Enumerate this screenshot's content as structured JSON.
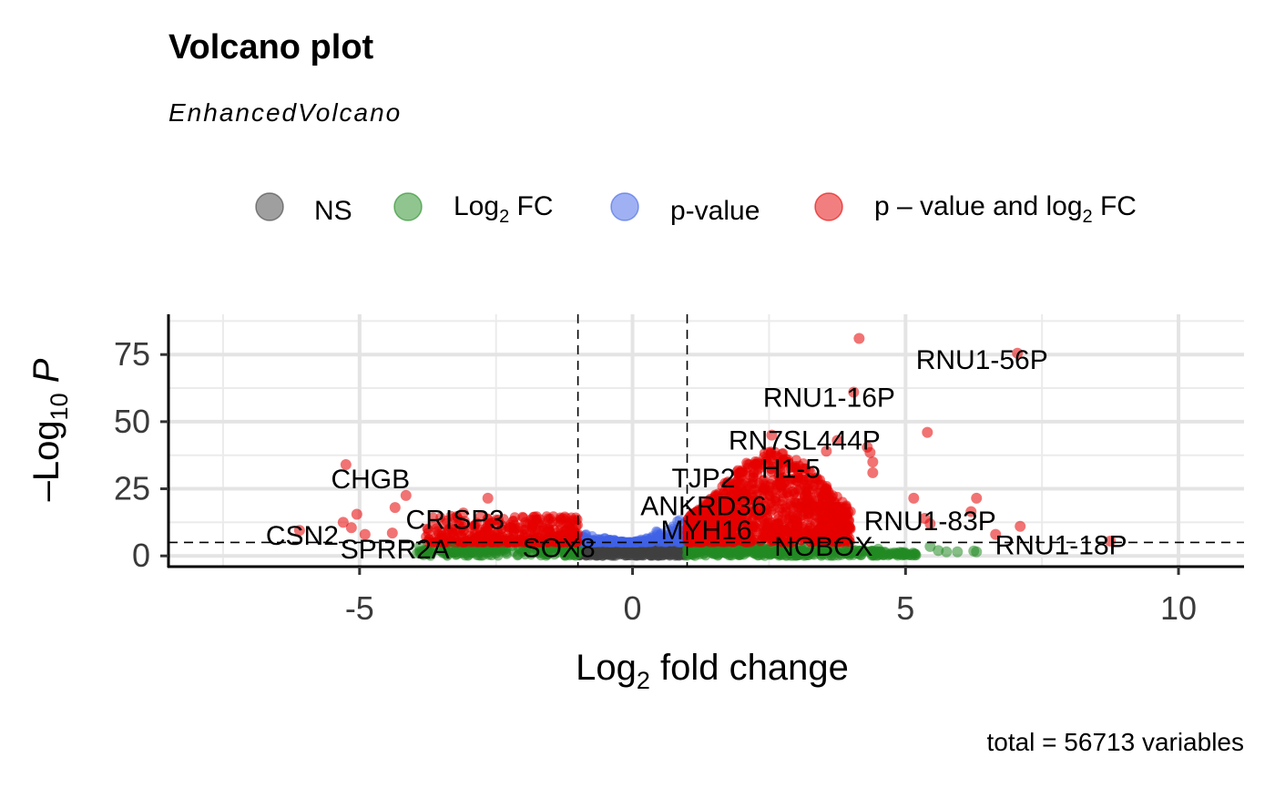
{
  "chart_data": {
    "type": "scatter",
    "title": "Volcano plot",
    "subtitle": "EnhancedVolcano",
    "caption": "total = 56713 variables",
    "xlabel": "fold change",
    "xlabel_prefix": "Log",
    "xlabel_sub": "2",
    "ylabel_prefix": "–Log",
    "ylabel_sub": "10",
    "ylabel_var": "P",
    "xlim": [
      -8.5,
      11.2
    ],
    "ylim": [
      -4,
      90
    ],
    "x_ticks": [
      -5,
      0,
      5,
      10
    ],
    "x_tick_labels": [
      "-5",
      "0",
      "5",
      "10"
    ],
    "y_ticks": [
      0,
      25,
      50,
      75
    ],
    "y_tick_labels": [
      "0",
      "25",
      "50",
      "75"
    ],
    "x_minor": [
      -7.5,
      -2.5,
      2.5,
      7.5
    ],
    "y_minor": [
      12.5,
      37.5,
      62.5,
      87.5
    ],
    "grid": true,
    "fc_cutoffs": [
      -1,
      1
    ],
    "p_cutoff_neglog10": 5,
    "legend": {
      "position": "top",
      "items": [
        {
          "key": "ns",
          "label": "NS",
          "color": "#404040"
        },
        {
          "key": "fc",
          "label_prefix": "Log",
          "label_sub": "2",
          "label_suffix": " FC",
          "color": "#228b22"
        },
        {
          "key": "p",
          "label": "p-value",
          "color": "#4063e6"
        },
        {
          "key": "both",
          "label_prefix": "p – value and log",
          "label_sub": "2",
          "label_suffix": " FC",
          "color": "#e60000"
        }
      ]
    },
    "colors": {
      "ns": "#404040",
      "fc": "#228b22",
      "p": "#4063e6",
      "both": "#e60000"
    },
    "highlight_points": [
      {
        "x": 4.15,
        "y": 81,
        "class": "both"
      },
      {
        "x": 7.05,
        "y": 75.5,
        "class": "both"
      },
      {
        "x": 4.05,
        "y": 61,
        "class": "both"
      },
      {
        "x": 5.4,
        "y": 46,
        "class": "both"
      },
      {
        "x": 4.3,
        "y": 40.5,
        "class": "both"
      },
      {
        "x": 4.35,
        "y": 38.5,
        "class": "both"
      },
      {
        "x": 4.4,
        "y": 35,
        "class": "both"
      },
      {
        "x": 4.4,
        "y": 31,
        "class": "both"
      },
      {
        "x": 3.55,
        "y": 39,
        "class": "both"
      },
      {
        "x": 3.75,
        "y": 43,
        "class": "both"
      },
      {
        "x": 2.55,
        "y": 45,
        "class": "both"
      },
      {
        "x": 6.3,
        "y": 21.5,
        "class": "both"
      },
      {
        "x": 6.2,
        "y": 16.5,
        "class": "both"
      },
      {
        "x": 5.15,
        "y": 21.5,
        "class": "both"
      },
      {
        "x": 5.35,
        "y": 14,
        "class": "both"
      },
      {
        "x": 7.1,
        "y": 11,
        "class": "both"
      },
      {
        "x": 6.65,
        "y": 8,
        "class": "both"
      },
      {
        "x": 8.75,
        "y": 5.5,
        "class": "both"
      },
      {
        "x": 5.45,
        "y": 12,
        "class": "both"
      },
      {
        "x": -5.25,
        "y": 34,
        "class": "both"
      },
      {
        "x": -4.15,
        "y": 22.5,
        "class": "both"
      },
      {
        "x": -5.05,
        "y": 15.5,
        "class": "both"
      },
      {
        "x": -4.35,
        "y": 18,
        "class": "both"
      },
      {
        "x": -5.3,
        "y": 12.5,
        "class": "both"
      },
      {
        "x": -5.15,
        "y": 10.5,
        "class": "both"
      },
      {
        "x": -6.1,
        "y": 9.5,
        "class": "both"
      },
      {
        "x": -4.9,
        "y": 8,
        "class": "both"
      },
      {
        "x": -4.4,
        "y": 8.5,
        "class": "both"
      },
      {
        "x": -2.65,
        "y": 21.5,
        "class": "both"
      },
      {
        "x": -3.1,
        "y": 16,
        "class": "both"
      },
      {
        "x": -3.4,
        "y": 13,
        "class": "both"
      },
      {
        "x": 5.45,
        "y": 3.5,
        "class": "fc"
      },
      {
        "x": 5.6,
        "y": 2,
        "class": "fc"
      },
      {
        "x": 5.75,
        "y": 1.5,
        "class": "fc"
      },
      {
        "x": 5.95,
        "y": 1.5,
        "class": "fc"
      },
      {
        "x": 6.3,
        "y": 1.5,
        "class": "fc"
      },
      {
        "x": 6.25,
        "y": 1.8,
        "class": "fc"
      },
      {
        "x": 4.5,
        "y": 2.5,
        "class": "fc"
      },
      {
        "x": -3.9,
        "y": 3.5,
        "class": "fc"
      },
      {
        "x": -3.3,
        "y": 2.5,
        "class": "fc"
      }
    ],
    "labels": [
      {
        "text": "RNU1-56P",
        "x": 6.4,
        "y": 73
      },
      {
        "text": "RNU1-16P",
        "x": 3.6,
        "y": 59
      },
      {
        "text": "RN7SL444P",
        "x": 3.15,
        "y": 43
      },
      {
        "text": "TJP2",
        "x": 1.3,
        "y": 29
      },
      {
        "text": "H1-5",
        "x": 2.9,
        "y": 32.5
      },
      {
        "text": "ANKRD36",
        "x": 1.3,
        "y": 18.5
      },
      {
        "text": "MYH16",
        "x": 1.35,
        "y": 9.5
      },
      {
        "text": "NOBOX",
        "x": 3.5,
        "y": 3.5
      },
      {
        "text": "RNU1-83P",
        "x": 5.45,
        "y": 13
      },
      {
        "text": "RNU1-18P",
        "x": 7.85,
        "y": 4
      },
      {
        "text": "CHGB",
        "x": -4.8,
        "y": 28.5
      },
      {
        "text": "CRISP3",
        "x": -3.25,
        "y": 13.5
      },
      {
        "text": "CSN2",
        "x": -6.05,
        "y": 7.5
      },
      {
        "text": "SPRR2A",
        "x": -4.35,
        "y": 2.5
      },
      {
        "text": "SOX8",
        "x": -1.35,
        "y": 3
      }
    ]
  }
}
